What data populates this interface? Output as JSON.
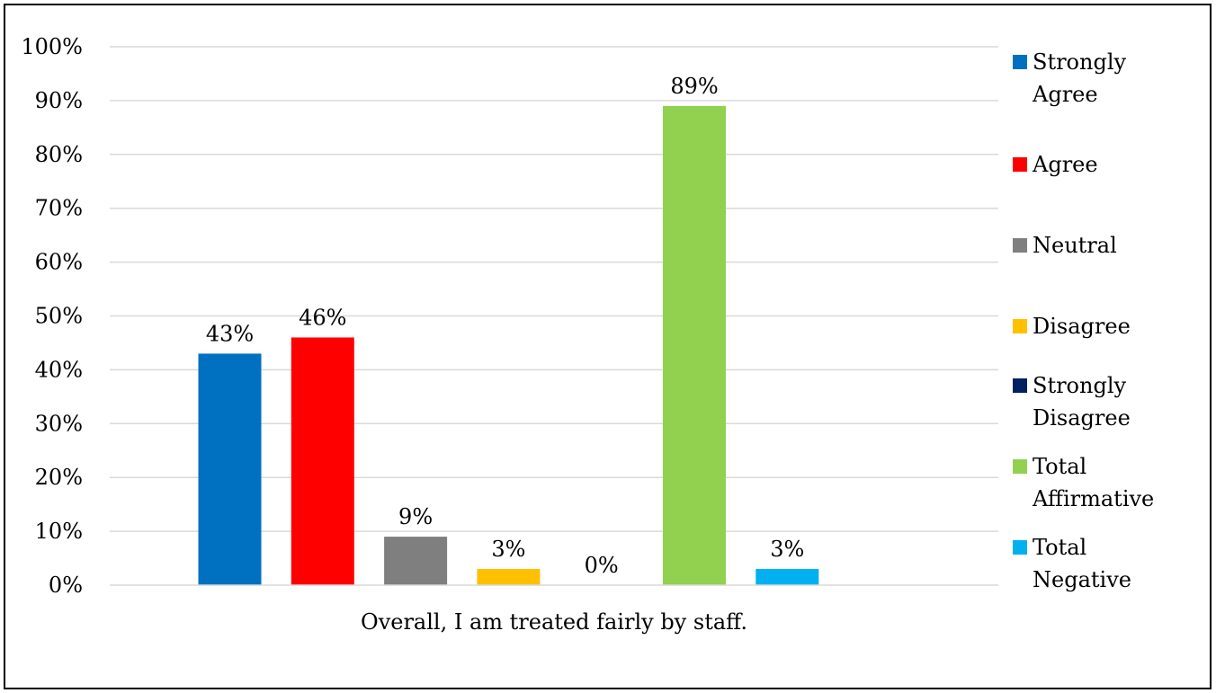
{
  "chart_data": {
    "type": "bar",
    "categories": [
      "Overall, I am treated fairly by staff."
    ],
    "series": [
      {
        "name": "Strongly Agree",
        "values": [
          43
        ],
        "color": "#0070C0",
        "label": "43%"
      },
      {
        "name": "Agree",
        "values": [
          46
        ],
        "color": "#FF0000",
        "label": "46%"
      },
      {
        "name": "Neutral",
        "values": [
          9
        ],
        "color": "#7F7F7F",
        "label": "9%"
      },
      {
        "name": "Disagree",
        "values": [
          3
        ],
        "color": "#FFC000",
        "label": "3%"
      },
      {
        "name": "Strongly Disagree",
        "values": [
          0
        ],
        "color": "#002060",
        "label": "0%"
      },
      {
        "name": "Total Affirmative",
        "values": [
          89
        ],
        "color": "#92D050",
        "label": "89%"
      },
      {
        "name": "Total Negative",
        "values": [
          3
        ],
        "color": "#00B0F0",
        "label": "3%"
      }
    ],
    "ylim": [
      0,
      100
    ],
    "yticks": [
      "0%",
      "10%",
      "20%",
      "30%",
      "40%",
      "50%",
      "60%",
      "70%",
      "80%",
      "90%",
      "100%"
    ],
    "grid": true,
    "legend_position": "right"
  }
}
